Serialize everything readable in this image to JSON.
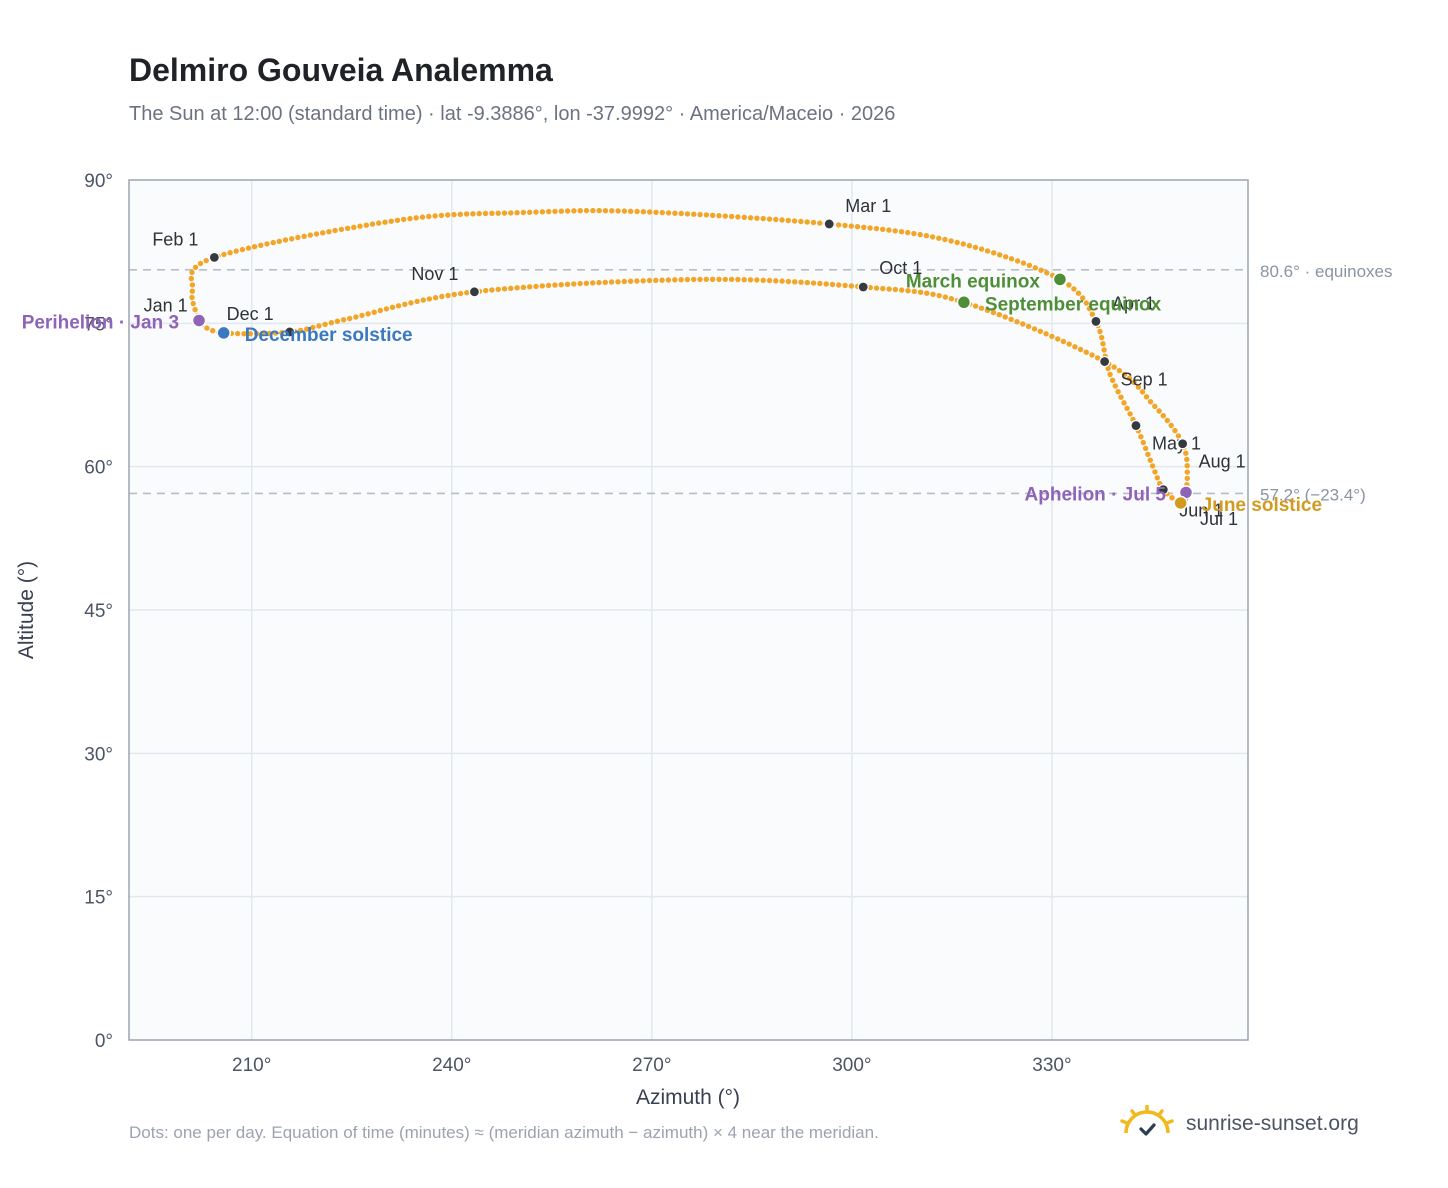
{
  "page": {
    "title": "Delmiro Gouveia Analemma",
    "subtitle": "The Sun at 12:00 (standard time) · lat -9.3886°, lon -37.9992° · America/Maceio · 2026",
    "footnote": "Dots: one per day. Equation of time (minutes) ≈ (meridian azimuth − azimuth) × 4 near the meridian.",
    "brand": "sunrise-sunset.org",
    "brand_icon": "sun-logo-icon"
  },
  "chart_data": {
    "type": "scatter",
    "title": "Delmiro Gouveia Analemma",
    "xlabel": "Azimuth (°)",
    "ylabel": "Altitude (°)",
    "xlim": [
      191.6,
      359.4
    ],
    "ylim": [
      0,
      90
    ],
    "grid": true,
    "xticks": [
      210,
      240,
      270,
      300,
      330
    ],
    "xtick_labels": [
      "210°",
      "240°",
      "270°",
      "300°",
      "330°"
    ],
    "yticks": [
      0,
      15,
      30,
      45,
      60,
      75,
      90
    ],
    "ytick_labels": [
      "0°",
      "15°",
      "30°",
      "45°",
      "60°",
      "75°",
      "90°"
    ],
    "colors": {
      "path": "#f2a526",
      "month_marker": "#343a40",
      "apsis": "#8e63b8",
      "december_solstice": "#3a78c0",
      "equinox": "#4e8e36",
      "june_solstice": "#d39a1f",
      "reference_line": "#b8bec8",
      "grid": "#e3e8ee",
      "plot_bg": "#f9fbfd",
      "frame": "#9aa5b4"
    },
    "analemma_path": [
      {
        "date": "Jan 1",
        "azimuth": 202.2,
        "altitude": 75.2
      },
      {
        "date": "Jan 16",
        "azimuth": 201.1,
        "altitude": 78.4
      },
      {
        "date": "Feb 1",
        "azimuth": 204.4,
        "altitude": 81.9
      },
      {
        "date": "Feb 16",
        "azimuth": 232.0,
        "altitude": 85.8
      },
      {
        "date": "Feb 20",
        "azimuth": 251.0,
        "altitude": 86.6
      },
      {
        "date": "Feb 24",
        "azimuth": 268.0,
        "altitude": 86.7
      },
      {
        "date": "Mar 1",
        "azimuth": 296.6,
        "altitude": 85.4
      },
      {
        "date": "Mar 10",
        "azimuth": 315.0,
        "altitude": 83.6
      },
      {
        "date": "Mar 20",
        "azimuth": 331.2,
        "altitude": 79.6
      },
      {
        "date": "Apr 1",
        "azimuth": 336.6,
        "altitude": 75.2
      },
      {
        "date": "Apr 16",
        "azimuth": 338.7,
        "altitude": 69.7
      },
      {
        "date": "May 1",
        "azimuth": 342.6,
        "altitude": 64.3
      },
      {
        "date": "May 16",
        "azimuth": 345.2,
        "altitude": 59.9
      },
      {
        "date": "Jun 1",
        "azimuth": 346.7,
        "altitude": 57.6
      },
      {
        "date": "Jun 21",
        "azimuth": 349.3,
        "altitude": 56.2
      },
      {
        "date": "Jul 1",
        "azimuth": 349.8,
        "altitude": 56.7
      },
      {
        "date": "Jul 16",
        "azimuth": 350.3,
        "altitude": 58.9
      },
      {
        "date": "Aug 1",
        "azimuth": 349.6,
        "altitude": 62.4
      },
      {
        "date": "Aug 16",
        "azimuth": 345.3,
        "altitude": 66.4
      },
      {
        "date": "Sep 1",
        "azimuth": 337.9,
        "altitude": 71.0
      },
      {
        "date": "Sep 22",
        "azimuth": 316.8,
        "altitude": 77.2
      },
      {
        "date": "Oct 1",
        "azimuth": 301.7,
        "altitude": 78.8
      },
      {
        "date": "Oct 16",
        "azimuth": 277.0,
        "altitude": 79.6
      },
      {
        "date": "Nov 1",
        "azimuth": 243.4,
        "altitude": 78.3
      },
      {
        "date": "Nov 16",
        "azimuth": 224.0,
        "altitude": 75.4
      },
      {
        "date": "Dec 1",
        "azimuth": 215.7,
        "altitude": 74.1
      },
      {
        "date": "Dec 21",
        "azimuth": 205.8,
        "altitude": 74.0
      },
      {
        "date": "Dec 31",
        "azimuth": 202.4,
        "altitude": 74.9
      }
    ],
    "month_markers": [
      {
        "label": "Jan 1",
        "azimuth": 202.2,
        "altitude": 75.2,
        "anchor": "end",
        "dx": -12,
        "dy": -10
      },
      {
        "label": "Feb 1",
        "azimuth": 204.4,
        "altitude": 81.9,
        "anchor": "end",
        "dx": -16,
        "dy": -12
      },
      {
        "label": "Mar 1",
        "azimuth": 296.6,
        "altitude": 85.4,
        "anchor": "start",
        "dx": 16,
        "dy": -12
      },
      {
        "label": "Apr 1",
        "azimuth": 336.6,
        "altitude": 75.2,
        "anchor": "start",
        "dx": 16,
        "dy": -12
      },
      {
        "label": "May 1",
        "azimuth": 342.6,
        "altitude": 64.3,
        "anchor": "start",
        "dx": 16,
        "dy": 24
      },
      {
        "label": "Jun 1",
        "azimuth": 346.7,
        "altitude": 57.6,
        "anchor": "start",
        "dx": 16,
        "dy": 27
      },
      {
        "label": "Jul 1",
        "azimuth": 349.8,
        "altitude": 56.7,
        "anchor": "start",
        "dx": 16,
        "dy": 27
      },
      {
        "label": "Aug 1",
        "azimuth": 349.6,
        "altitude": 62.4,
        "anchor": "start",
        "dx": 16,
        "dy": 24
      },
      {
        "label": "Sep 1",
        "azimuth": 337.9,
        "altitude": 71.0,
        "anchor": "start",
        "dx": 16,
        "dy": 24
      },
      {
        "label": "Oct 1",
        "azimuth": 301.7,
        "altitude": 78.8,
        "anchor": "start",
        "dx": 16,
        "dy": -13
      },
      {
        "label": "Nov 1",
        "azimuth": 243.4,
        "altitude": 78.3,
        "anchor": "end",
        "dx": -16,
        "dy": -12
      },
      {
        "label": "Dec 1",
        "azimuth": 215.7,
        "altitude": 74.1,
        "anchor": "end",
        "dx": -16,
        "dy": -12
      }
    ],
    "events": [
      {
        "label": "Perihelion · Jan 3",
        "azimuth": 202.1,
        "altitude": 75.3,
        "color": "#8e63b8",
        "anchor": "end",
        "dx": -20,
        "dy": 8
      },
      {
        "label": "December solstice",
        "azimuth": 205.8,
        "altitude": 74.0,
        "color": "#3a78c0",
        "anchor": "start",
        "dx": 21,
        "dy": 8
      },
      {
        "label": "March equinox",
        "azimuth": 331.2,
        "altitude": 79.6,
        "color": "#4e8e36",
        "anchor": "end",
        "dx": -20,
        "dy": 8
      },
      {
        "label": "September equinox",
        "azimuth": 316.8,
        "altitude": 77.2,
        "color": "#4e8e36",
        "anchor": "start",
        "dx": 21,
        "dy": 8
      },
      {
        "label": "Aphelion · Jul 5",
        "azimuth": 350.1,
        "altitude": 57.3,
        "color": "#8e63b8",
        "anchor": "end",
        "dx": -20,
        "dy": 8
      },
      {
        "label": "June solstice",
        "azimuth": 349.3,
        "altitude": 56.2,
        "color": "#d39a1f",
        "anchor": "start",
        "dx": 21,
        "dy": 8
      }
    ],
    "reference_lines": [
      {
        "altitude": 80.6,
        "label": "80.6° · equinoxes"
      },
      {
        "altitude": 57.2,
        "label": "57.2° (−23.4°)"
      }
    ]
  }
}
